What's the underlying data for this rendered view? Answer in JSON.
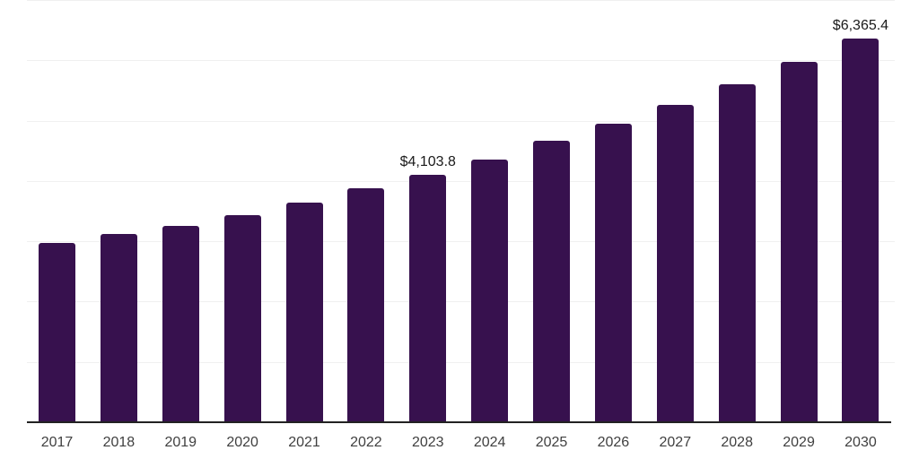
{
  "chart_data": {
    "type": "bar",
    "title": "",
    "xlabel": "",
    "ylabel": "",
    "categories": [
      "2017",
      "2018",
      "2019",
      "2020",
      "2021",
      "2022",
      "2023",
      "2024",
      "2025",
      "2026",
      "2027",
      "2028",
      "2029",
      "2030"
    ],
    "values": [
      2975,
      3115,
      3255,
      3435,
      3635,
      3875,
      4103.8,
      4360,
      4660,
      4955,
      5265,
      5605,
      5970,
      6365.4
    ],
    "point_labels": [
      "",
      "",
      "",
      "",
      "",
      "",
      "$4,103.8",
      "",
      "",
      "",
      "",
      "",
      "",
      "$6,365.4"
    ],
    "ylim": [
      0,
      7000
    ],
    "gridline_step": 1000,
    "grid": true,
    "y_tick_labels_shown": false,
    "legend": "none",
    "colors": {
      "bar": "#37114E",
      "gridline": "#f0f0f0",
      "axis": "#222222",
      "tick_label": "#404040",
      "value_label": "#1a1a1a",
      "background": "#ffffff"
    }
  }
}
